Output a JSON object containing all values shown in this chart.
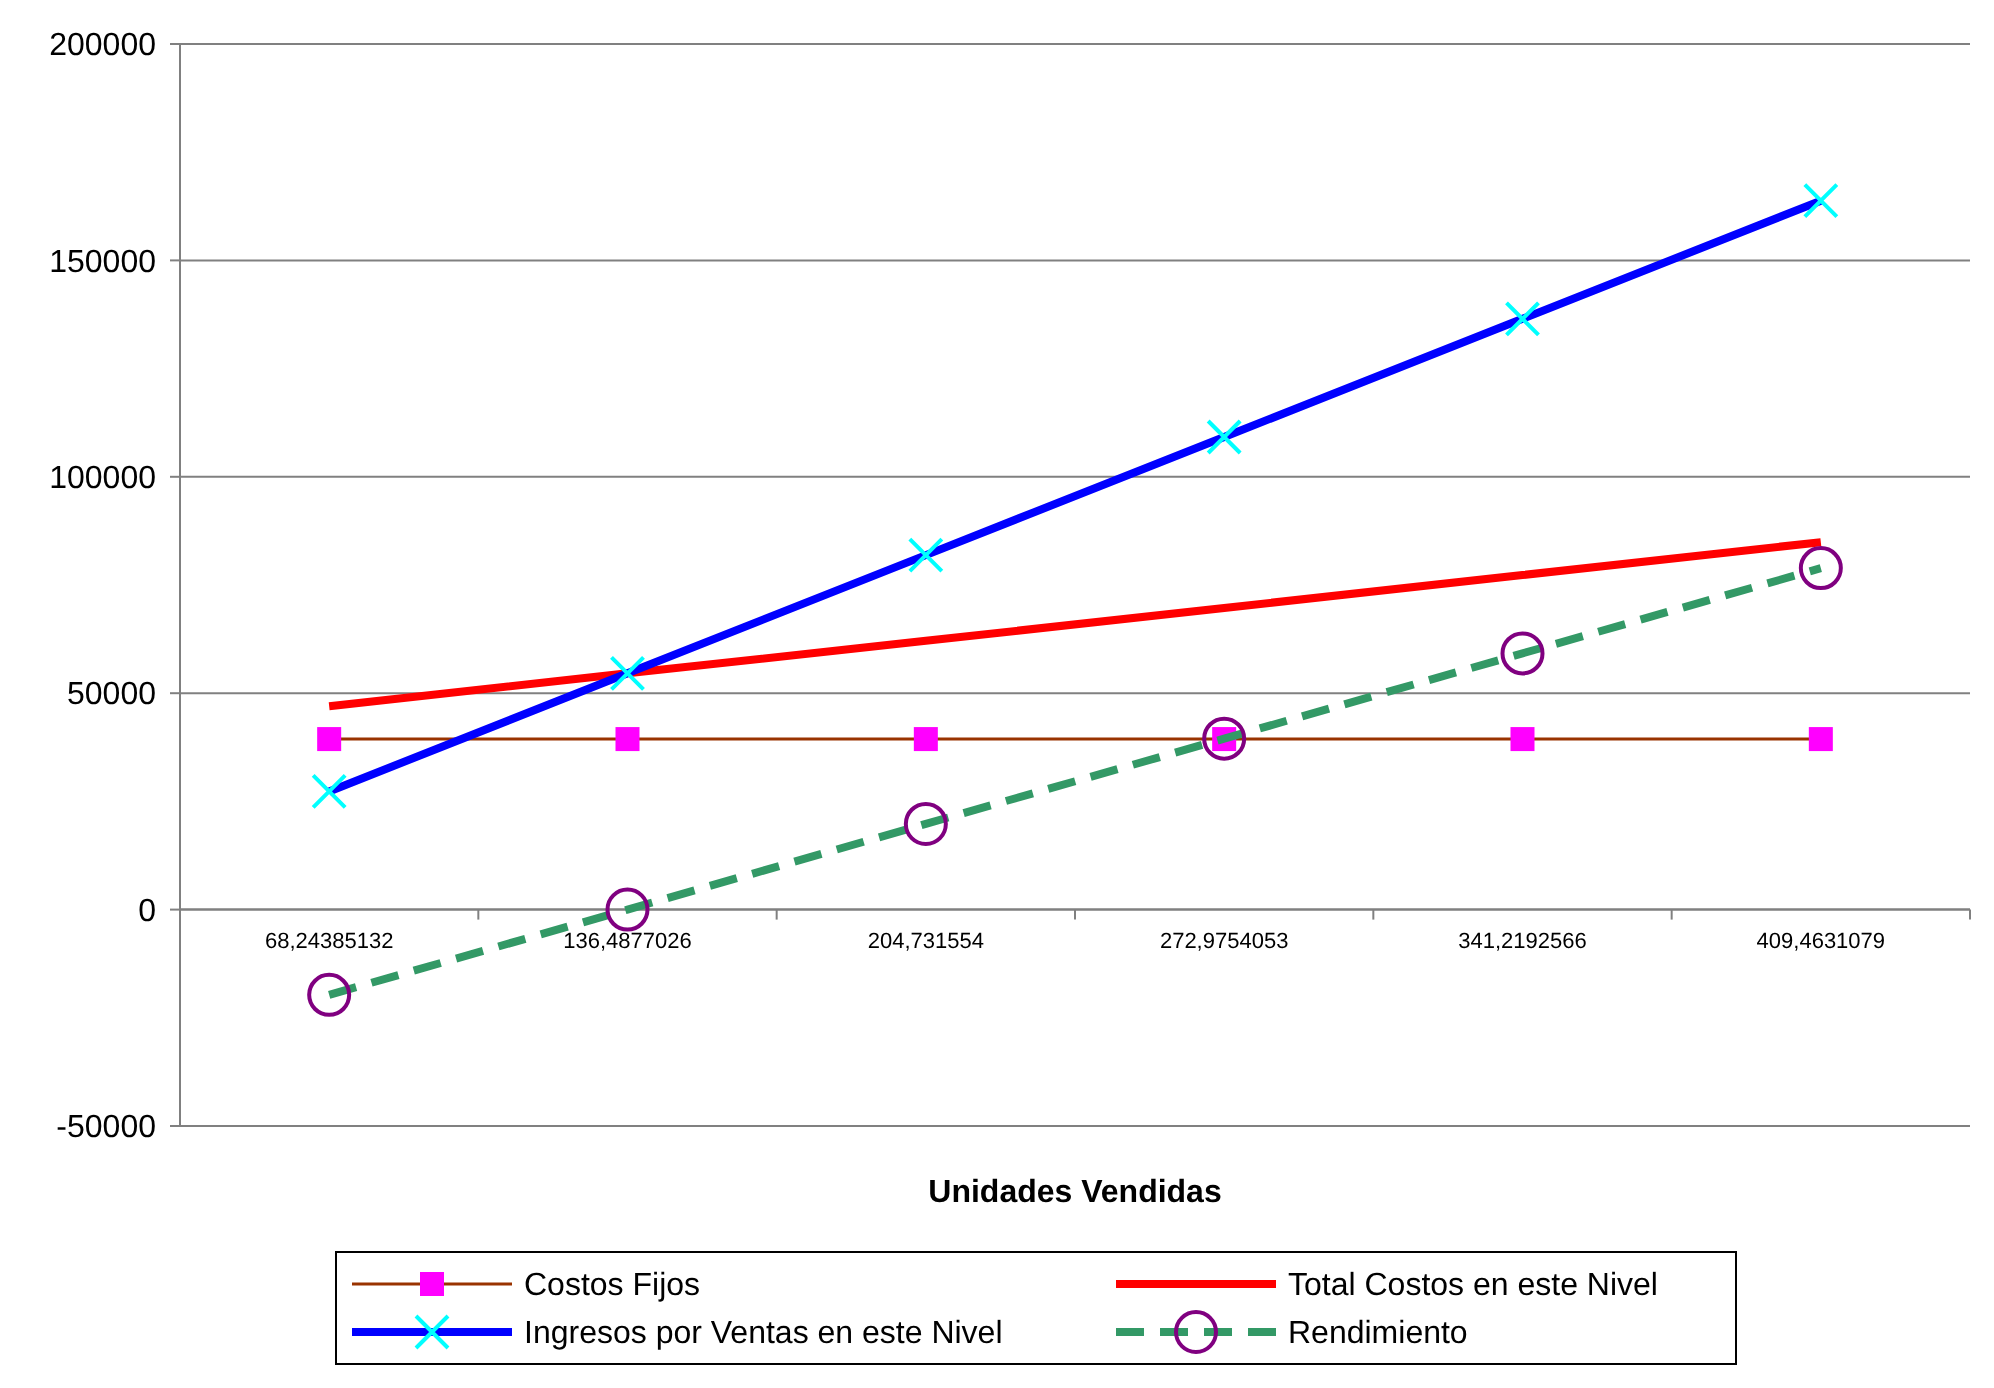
{
  "chart_data": {
    "type": "line",
    "xlabel": "Unidades Vendidas",
    "categories": [
      "68,24385132",
      "136,4877026",
      "204,731554",
      "272,9754053",
      "341,2192566",
      "409,4631079"
    ],
    "ylim": [
      -50000,
      200000
    ],
    "yticks": [
      -50000,
      0,
      50000,
      100000,
      150000,
      200000
    ],
    "grid": "y",
    "legend": "bottom",
    "series": [
      {
        "name": "Costos Fijos",
        "color": "#993300",
        "colors": [
          "#ff00ff",
          "#ff00ff",
          "#ff00ff",
          "#ff00ff",
          "#ff00ff",
          "#ff00ff"
        ],
        "marker": "square",
        "line_style": "solid",
        "values": [
          39400,
          39400,
          39400,
          39400,
          39400,
          39400
        ]
      },
      {
        "name": "Total Costos en este Nivel",
        "color": "#ff0000",
        "marker": "none",
        "line_style": "solid",
        "values": [
          47000,
          54600,
          62100,
          69700,
          77300,
          84900
        ]
      },
      {
        "name": "Ingresos por Ventas en este Nivel",
        "color": "#0000ff",
        "colors": [
          "#00ffff",
          "#00ffff",
          "#00ffff",
          "#00ffff",
          "#00ffff",
          "#00ffff"
        ],
        "marker": "cross",
        "line_style": "solid",
        "values": [
          27300,
          54600,
          81900,
          109200,
          136500,
          163800
        ]
      },
      {
        "name": "Rendimiento",
        "color": "#339966",
        "colors": [
          "#800080",
          "#800080",
          "#800080",
          "#800080",
          "#800080",
          "#800080"
        ],
        "marker": "circle",
        "line_style": "dashed",
        "values": [
          -19700,
          0,
          19800,
          39500,
          59200,
          78900
        ]
      }
    ]
  }
}
